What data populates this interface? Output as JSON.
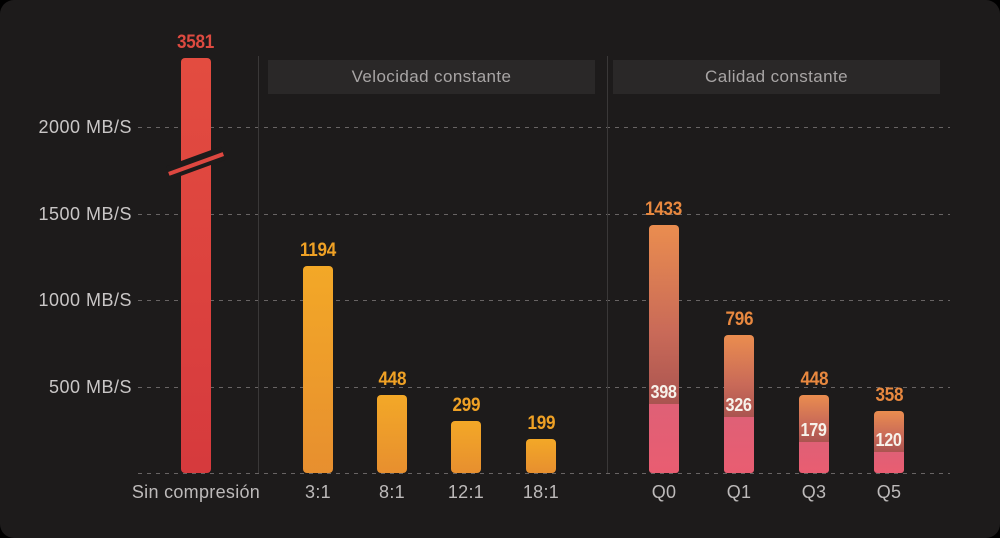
{
  "chart_data": {
    "type": "bar",
    "unit": "MB/S",
    "y_axis": {
      "tick_labels": [
        "2000 MB/S",
        "1500 MB/S",
        "1000 MB/S",
        "500 MB/S"
      ],
      "tick_values": [
        2000,
        1500,
        1000,
        500
      ],
      "range": [
        0,
        2000
      ],
      "gridlines": "dashed",
      "axis_break": {
        "bar": "Sin compresión",
        "between": [
          1500,
          2000
        ]
      }
    },
    "sections": [
      {
        "header": null,
        "style": "red",
        "bars": [
          {
            "category": "Sin compresión",
            "value": 3581
          }
        ]
      },
      {
        "header": "Velocidad constante",
        "style": "orange",
        "bars": [
          {
            "category": "3:1",
            "value": 1194
          },
          {
            "category": "8:1",
            "value": 448
          },
          {
            "category": "12:1",
            "value": 299
          },
          {
            "category": "18:1",
            "value": 199
          }
        ]
      },
      {
        "header": "Calidad constante",
        "style": "orange-pink-stacked",
        "bars": [
          {
            "category": "Q0",
            "value": 1433,
            "sub_value": 398
          },
          {
            "category": "Q1",
            "value": 796,
            "sub_value": 326
          },
          {
            "category": "Q3",
            "value": 448,
            "sub_value": 179
          },
          {
            "category": "Q5",
            "value": 358,
            "sub_value": 120
          }
        ]
      }
    ],
    "colors": {
      "card_bg": "#1d1b1b",
      "header_bg": "#2a2828",
      "header_text": "#a8a5a5",
      "axis_text": "#c9c6c6",
      "category_text": "#bdbaba",
      "gridline": "#a5a0a0",
      "red_bar_top": "#e34c40",
      "red_bar_bottom": "#d63a3d",
      "red_value_label": "#dd4a40",
      "orange_bar_top": "#f3a827",
      "orange_bar_bottom": "#e78f2f",
      "orange_value_label": "#efa125",
      "stack_upper_top": "#ea8d4f",
      "stack_upper_bottom": "#aa5450",
      "stack_lower_top": "#df6076",
      "stack_lower_bottom": "#e95d71",
      "stack_total_label": "#e8883f",
      "stack_sub_label": "#f7f2ea"
    }
  }
}
